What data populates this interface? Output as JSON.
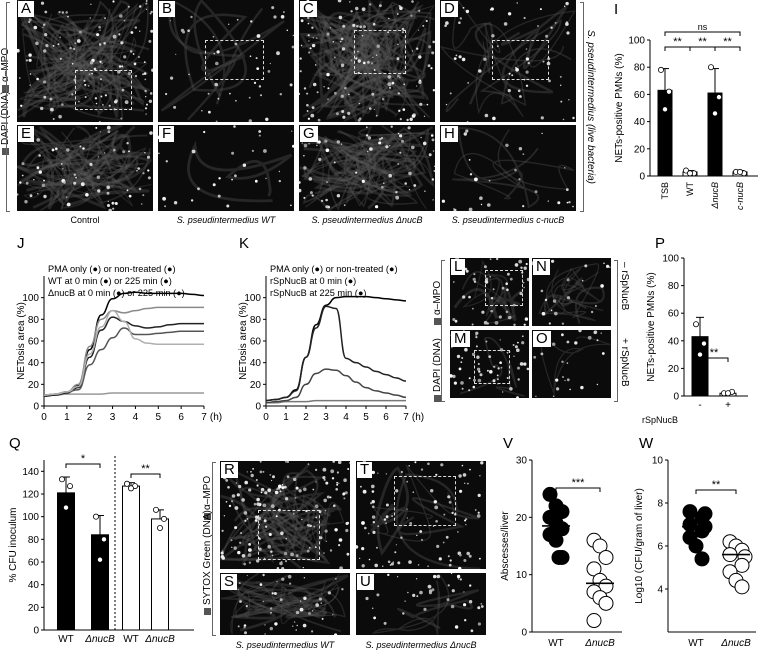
{
  "panels": {
    "A": "A",
    "B": "B",
    "C": "C",
    "D": "D",
    "E": "E",
    "F": "F",
    "G": "G",
    "H": "H",
    "I": "I",
    "J": "J",
    "K": "K",
    "L": "L",
    "M": "M",
    "N": "N",
    "O": "O",
    "P": "P",
    "Q": "Q",
    "R": "R",
    "S": "S",
    "T": "T",
    "U": "U",
    "V": "V",
    "W": "W"
  },
  "top": {
    "stain_mpo": "α–MPO",
    "stain_dapi": "DAPI (DNA)",
    "right_label": "S. pseudintermedius (live bacteria)",
    "captions": [
      "Control",
      "S. pseudintermedius WT",
      "S. pseudintermedius ΔnucB",
      "S. pseudintermedius c-nucB"
    ]
  },
  "lmno": {
    "stain_mpo": "α–MPO",
    "stain_dapi": "DAPI (DNA)",
    "minus_label": "– rSpNucB",
    "plus_label": "+ rSpNucB"
  },
  "rstu": {
    "stain_mpo": "α–MPO",
    "stain_sytox": "SYTOX Green (DNA)",
    "captions": [
      "S. pseudintermedius WT",
      "S. pseudintermedius ΔnucB"
    ]
  },
  "colors": {
    "black": "#000000",
    "dark_gray": "#333333",
    "mid_gray": "#888888",
    "light_gray": "#b0b0b0",
    "image_bg": "#0b0b0b"
  },
  "chart_data": [
    {
      "id": "I",
      "type": "bar",
      "ylabel": "NETs-positive PMNs (%)",
      "ylim": [
        0,
        100
      ],
      "yticks": [
        0,
        20,
        40,
        60,
        80,
        100
      ],
      "categories": [
        "TSB",
        "WT",
        "ΔnucB",
        "c-nucB"
      ],
      "values": [
        63,
        3,
        61,
        3
      ],
      "errors": [
        16,
        1,
        18,
        1
      ],
      "fills": [
        "#000000",
        "#ffffff",
        "#000000",
        "#ffffff"
      ],
      "points": [
        [
          78,
          62,
          49
        ],
        [
          4,
          2,
          2
        ],
        [
          80,
          58,
          46
        ],
        [
          3,
          2,
          3
        ]
      ],
      "significance": [
        {
          "from": 0,
          "to": 1,
          "label": "**"
        },
        {
          "from": 1,
          "to": 2,
          "label": "**"
        },
        {
          "from": 2,
          "to": 3,
          "label": "**"
        },
        {
          "from": 0,
          "to": 3,
          "label": "ns"
        }
      ]
    },
    {
      "id": "J",
      "type": "line",
      "ylabel": "NETosis area (%)",
      "xunit": "(h)",
      "ylim": [
        0,
        120
      ],
      "yticks": [
        0,
        20,
        40,
        60,
        80,
        100
      ],
      "xlim": [
        0,
        7
      ],
      "xticks": [
        0,
        1,
        2,
        3,
        4,
        5,
        6,
        7
      ],
      "legend": [
        "PMA only (●) or non-treated (●)",
        "WT at 0 min (●) or 225 min (●)",
        "ΔnucB at 0 min (●) or 225 min (●)"
      ],
      "x": [
        0,
        0.5,
        1,
        1.5,
        2,
        2.5,
        3,
        3.5,
        4,
        4.5,
        5,
        5.5,
        6,
        6.5,
        7
      ],
      "series": [
        {
          "color": "#000000",
          "values": [
            10,
            11,
            13,
            19,
            52,
            84,
            99,
            104,
            105,
            104,
            104,
            104,
            104,
            103,
            102
          ]
        },
        {
          "color": "#999999",
          "values": [
            10,
            10,
            11,
            11,
            11,
            11,
            12,
            12,
            12,
            12,
            12,
            12,
            12,
            12,
            12
          ]
        },
        {
          "color": "#222222",
          "values": [
            9,
            10,
            12,
            17,
            45,
            70,
            82,
            78,
            74,
            72,
            73,
            75,
            76,
            76,
            76
          ]
        },
        {
          "color": "#555555",
          "values": [
            10,
            11,
            13,
            15,
            38,
            52,
            63,
            72,
            66,
            66,
            67,
            68,
            69,
            69,
            69
          ]
        },
        {
          "color": "#8a8a8a",
          "values": [
            10,
            11,
            13,
            20,
            55,
            80,
            88,
            86,
            88,
            90,
            91,
            91,
            91,
            91,
            91
          ]
        },
        {
          "color": "#b0b0b0",
          "values": [
            10,
            11,
            13,
            18,
            48,
            73,
            88,
            78,
            62,
            58,
            57,
            57,
            57,
            57,
            57
          ]
        }
      ]
    },
    {
      "id": "K",
      "type": "line",
      "ylabel": "NETosis area (%)",
      "xunit": "(h)",
      "ylim": [
        0,
        120
      ],
      "yticks": [
        0,
        20,
        40,
        60,
        80,
        100
      ],
      "xlim": [
        0,
        7
      ],
      "xticks": [
        0,
        1,
        2,
        3,
        4,
        5,
        6,
        7
      ],
      "legend": [
        "PMA only (●) or non-treated (●)",
        "rSpNucB at 0 min (●)",
        "rSpNucB at 225 min (●)"
      ],
      "x": [
        0,
        0.5,
        1,
        1.5,
        2,
        2.5,
        3,
        3.5,
        4,
        4.5,
        5,
        5.5,
        6,
        6.5,
        7
      ],
      "series": [
        {
          "color": "#000000",
          "values": [
            5,
            6,
            8,
            15,
            45,
            75,
            93,
            100,
            101,
            101,
            101,
            100,
            99,
            98,
            97
          ]
        },
        {
          "color": "#777777",
          "values": [
            3,
            3,
            4,
            4,
            4,
            5,
            5,
            5,
            5,
            5,
            5,
            5,
            5,
            5,
            5
          ]
        },
        {
          "color": "#444444",
          "values": [
            3,
            4,
            5,
            8,
            20,
            30,
            34,
            33,
            28,
            22,
            17,
            14,
            12,
            10,
            8
          ]
        },
        {
          "color": "#222222",
          "values": [
            5,
            6,
            8,
            14,
            45,
            72,
            92,
            90,
            44,
            40,
            36,
            32,
            29,
            26,
            23
          ]
        }
      ]
    },
    {
      "id": "P",
      "type": "bar",
      "ylabel": "NETs-positive PMNs (%)",
      "ylim": [
        0,
        100
      ],
      "yticks": [
        0,
        20,
        40,
        60,
        80,
        100
      ],
      "categories": [
        "-",
        "+"
      ],
      "xgroup_label": "rSpNucB",
      "values": [
        43,
        2
      ],
      "errors": [
        14,
        1
      ],
      "fills": [
        "#000000",
        "#ffffff"
      ],
      "points": [
        [
          52,
          38,
          30
        ],
        [
          2,
          3,
          2
        ]
      ],
      "significance": [
        {
          "from": 0,
          "to": 1,
          "label": "**"
        }
      ]
    },
    {
      "id": "Q",
      "type": "bar",
      "ylabel": "% CFU inoculum",
      "ylim": [
        0,
        150
      ],
      "yticks": [
        0,
        20,
        40,
        60,
        80,
        100,
        120,
        140
      ],
      "categories": [
        "WT",
        "ΔnucB",
        "WT",
        "ΔnucB"
      ],
      "values": [
        121,
        84,
        127,
        98
      ],
      "errors": [
        14,
        17,
        3,
        8
      ],
      "fills": [
        "#000000",
        "#000000",
        "#ffffff",
        "#ffffff"
      ],
      "points": [
        [
          133,
          127,
          108
        ],
        [
          100,
          80,
          62
        ],
        [
          129,
          127,
          125
        ],
        [
          106,
          98,
          90
        ]
      ],
      "significance": [
        {
          "from": 0,
          "to": 1,
          "label": "*"
        },
        {
          "from": 2,
          "to": 3,
          "label": "**"
        }
      ]
    },
    {
      "id": "V",
      "type": "scatter",
      "ylabel": "Abscesses/liver",
      "ylim": [
        0,
        30
      ],
      "yticks": [
        0,
        10,
        20,
        30
      ],
      "categories": [
        "WT",
        "ΔnucB"
      ],
      "groups": [
        {
          "name": "WT",
          "fill": "#000000",
          "median": 18.5,
          "values": [
            24,
            22,
            21,
            20,
            19,
            18,
            17,
            16,
            13,
            13
          ]
        },
        {
          "name": "ΔnucB",
          "fill": "#ffffff",
          "median": 8.5,
          "values": [
            16,
            15,
            13,
            11,
            9,
            8,
            7,
            6,
            5,
            2
          ]
        }
      ],
      "significance": [
        {
          "from": 0,
          "to": 1,
          "label": "***"
        }
      ]
    },
    {
      "id": "W",
      "type": "scatter",
      "ylabel": "Log10 (CFU/gram of liver)",
      "ylim": [
        2,
        10
      ],
      "yticks": [
        4,
        6,
        8,
        10
      ],
      "categories": [
        "WT",
        "ΔnucB"
      ],
      "groups": [
        {
          "name": "WT",
          "fill": "#000000",
          "median": 6.9,
          "values": [
            7.6,
            7.5,
            7.3,
            7.0,
            6.9,
            6.7,
            6.4,
            6.0,
            5.4
          ]
        },
        {
          "name": "ΔnucB",
          "fill": "#ffffff",
          "median": 5.6,
          "values": [
            6.2,
            6.0,
            5.8,
            5.6,
            5.5,
            5.1,
            4.8,
            4.4,
            4.1
          ]
        }
      ],
      "significance": [
        {
          "from": 0,
          "to": 1,
          "label": "**"
        }
      ]
    }
  ]
}
